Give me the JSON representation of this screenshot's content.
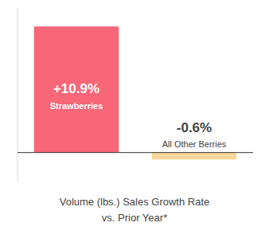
{
  "chart_data": {
    "type": "bar",
    "title": "Volume (lbs.) Sales Growth Rate",
    "subtitle": "vs. Prior Year*",
    "categories": [
      "Strawberries",
      "All Other Berries"
    ],
    "values": [
      10.9,
      -0.6
    ],
    "value_labels": [
      "+10.9%",
      "-0.6%"
    ],
    "data_labels": true,
    "colors": [
      "#F76777",
      "#F9D89C"
    ],
    "ylim": [
      -2.5,
      12.5
    ],
    "tick_labels": false,
    "grid": false
  }
}
